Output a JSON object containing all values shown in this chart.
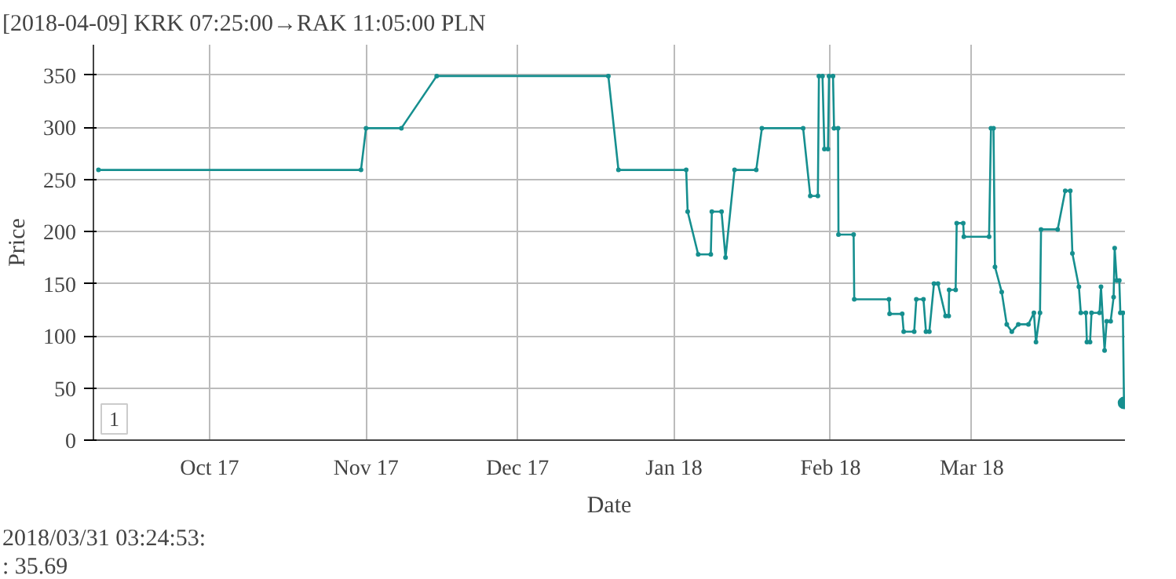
{
  "chart_data": {
    "type": "line",
    "title": "[2018-04-09] KRK 07:25:00→RAK 11:05:00 PLN",
    "xlabel": "Date",
    "ylabel": "Price",
    "xlim": [
      "2017-09-08",
      "2018-03-31T08:00"
    ],
    "xticks": [
      {
        "value": "2017-10-01",
        "label": "Oct 17"
      },
      {
        "value": "2017-11-01",
        "label": "Nov 17"
      },
      {
        "value": "2017-12-01",
        "label": "Dec 17"
      },
      {
        "value": "2018-01-01",
        "label": "Jan 18"
      },
      {
        "value": "2018-02-01",
        "label": "Feb 18"
      },
      {
        "value": "2018-03-01",
        "label": "Mar 18"
      }
    ],
    "ylim": [
      0,
      379
    ],
    "yticks": [
      0,
      50,
      100,
      150,
      200,
      250,
      300,
      350
    ],
    "grid": true,
    "marker": "circle",
    "line_style": "solid",
    "annotations": [
      "1",
      "2018/03/31 03:24:53:",
      ": 35.69"
    ],
    "series": [
      {
        "color": "#168f8f",
        "x": [
          "2017-09-09",
          "2017-10-31",
          "2017-11-01",
          "2017-11-08",
          "2017-11-15",
          "2017-12-19",
          "2017-12-21",
          "2018-01-03T10:00",
          "2018-01-03T17:00",
          "2018-01-05T19:00",
          "2018-01-08T07:00",
          "2018-01-08T12:00",
          "2018-01-10T10:00",
          "2018-01-11T05:00",
          "2018-01-13T00:00",
          "2018-01-17T07:00",
          "2018-01-18T10:00",
          "2018-01-26T14:00",
          "2018-01-28T00:00",
          "2018-01-29T12:00",
          "2018-01-29T17:00",
          "2018-01-30T10:00",
          "2018-01-30T19:00",
          "2018-01-31T12:00",
          "2018-01-31T17:00",
          "2018-02-01T12:00",
          "2018-02-01T17:00",
          "2018-02-02T12:00",
          "2018-02-02T14:00",
          "2018-02-05T14:00",
          "2018-02-05T17:00",
          "2018-02-12T14:00",
          "2018-02-12T17:00",
          "2018-02-15T05:00",
          "2018-02-15T12:00",
          "2018-02-17T14:00",
          "2018-02-18T00:00",
          "2018-02-19T10:00",
          "2018-02-19T22:00",
          "2018-02-20T14:00",
          "2018-02-21T12:00",
          "2018-02-22T07:00",
          "2018-02-23T19:00",
          "2018-02-24T10:00",
          "2018-02-24T12:00",
          "2018-02-25T19:00",
          "2018-02-26T00:00",
          "2018-02-27T07:00",
          "2018-02-27T10:00",
          "2018-03-04T10:00",
          "2018-03-04T19:00",
          "2018-03-05T07:00",
          "2018-03-05T14:00",
          "2018-03-06T22:00",
          "2018-03-07T22:00",
          "2018-03-08T22:00",
          "2018-03-10T05:00",
          "2018-03-12T05:00",
          "2018-03-13T07:00",
          "2018-03-13T17:00",
          "2018-03-14T12:00",
          "2018-03-14T17:00",
          "2018-03-18T00:00",
          "2018-03-19T12:00",
          "2018-03-20T12:00",
          "2018-03-20T22:00",
          "2018-03-22T05:00",
          "2018-03-22T14:00",
          "2018-03-23T14:00",
          "2018-03-23T19:00",
          "2018-03-24T10:00",
          "2018-03-24T17:00",
          "2018-03-26T07:00",
          "2018-03-26T14:00",
          "2018-03-27T07:00",
          "2018-03-27T17:00",
          "2018-03-28T12:00",
          "2018-03-29T02:00",
          "2018-03-29T07:00",
          "2018-03-29T17:00",
          "2018-03-30T05:00",
          "2018-03-30T10:00",
          "2018-03-30T22:00",
          "2018-03-31T03:24"
        ],
        "values": [
          259,
          259,
          299,
          299,
          349,
          349,
          259,
          259,
          219,
          178,
          178,
          219,
          219,
          175,
          259,
          259,
          299,
          299,
          234,
          234,
          349,
          349,
          279,
          279,
          349,
          349,
          299,
          299,
          197,
          197,
          135,
          135,
          121,
          121,
          104,
          104,
          135,
          135,
          104,
          104,
          150,
          150,
          119,
          119,
          144,
          144,
          208,
          208,
          195,
          195,
          299,
          299,
          166,
          142,
          111,
          104,
          111,
          111,
          122,
          94,
          122,
          202,
          202,
          239,
          239,
          179,
          147,
          122,
          122,
          94,
          94,
          122,
          122,
          147,
          86,
          114,
          114,
          137,
          184,
          153,
          153,
          122,
          122,
          35.69
        ]
      },
      {
        "type": "scatter",
        "color": "#168f8f",
        "x": [
          "2018-03-31T03:24"
        ],
        "values": [
          35.69
        ]
      }
    ]
  }
}
